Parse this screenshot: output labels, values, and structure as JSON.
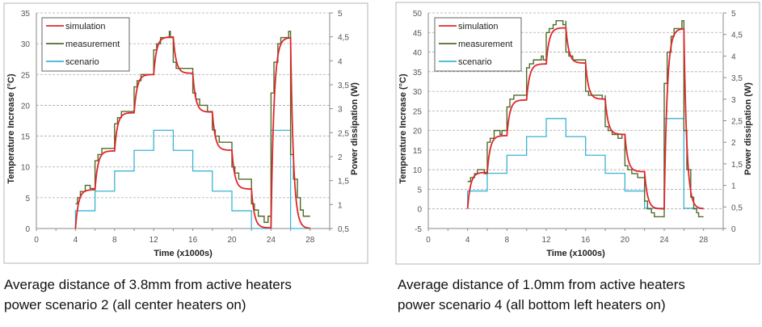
{
  "colors": {
    "simulation": "#e0262b",
    "measurement": "#4f6b2a",
    "scenario": "#3bb3d6",
    "grid": "#9a9a9a",
    "axis": "#8a8a8a"
  },
  "chart_data": [
    {
      "type": "line",
      "title": "",
      "xlabel": "Time (x1000s)",
      "ylabel": "Temperature Increase (°C)",
      "y2label": "Power dissipation (W)",
      "xlim": [
        0,
        30
      ],
      "ylim": [
        0,
        35
      ],
      "y2lim": [
        0.5,
        5
      ],
      "xticks": [
        "0",
        "4",
        "8",
        "12",
        "16",
        "20",
        "24",
        "28"
      ],
      "yticks": [
        "0",
        "5",
        "10",
        "15",
        "20",
        "25",
        "30",
        "35"
      ],
      "y2ticks": [
        "0,5",
        "1",
        "1,5",
        "2",
        "2,5",
        "3",
        "3,5",
        "4",
        "4,5",
        "5"
      ],
      "grid": true,
      "legend_position": "top-left",
      "legend": [
        "simulation",
        "measurement",
        "scenario"
      ],
      "simulation": {
        "start_value": 0,
        "time_constant": 0.3,
        "segments": [
          {
            "t0": 4,
            "t1": 6,
            "level": 6.3
          },
          {
            "t0": 6,
            "t1": 8,
            "level": 12.6
          },
          {
            "t0": 8,
            "t1": 10,
            "level": 18.8
          },
          {
            "t0": 10,
            "t1": 12,
            "level": 25
          },
          {
            "t0": 12,
            "t1": 14,
            "level": 31.1
          },
          {
            "t0": 14,
            "t1": 16,
            "level": 25.2
          },
          {
            "t0": 16,
            "t1": 18,
            "level": 18.9
          },
          {
            "t0": 18,
            "t1": 20,
            "level": 12.7
          },
          {
            "t0": 20,
            "t1": 22,
            "level": 6.4
          },
          {
            "t0": 22,
            "t1": 24,
            "level": 0.1
          },
          {
            "t0": 24,
            "t1": 26,
            "level": 31
          },
          {
            "t0": 26,
            "t1": 28,
            "level": 0
          }
        ]
      },
      "measurement": [
        [
          4,
          4
        ],
        [
          4.2,
          5
        ],
        [
          4.5,
          6
        ],
        [
          5,
          7
        ],
        [
          5.5,
          6.5
        ],
        [
          6,
          7
        ],
        [
          6,
          11
        ],
        [
          6.3,
          12
        ],
        [
          6.7,
          13
        ],
        [
          8,
          13
        ],
        [
          8,
          17
        ],
        [
          8.3,
          18
        ],
        [
          8.7,
          19
        ],
        [
          10,
          19
        ],
        [
          10,
          23
        ],
        [
          10.3,
          24
        ],
        [
          10.7,
          25
        ],
        [
          12,
          25
        ],
        [
          12,
          29
        ],
        [
          12.3,
          30
        ],
        [
          12.7,
          31
        ],
        [
          13.5,
          31
        ],
        [
          13.6,
          32
        ],
        [
          13.7,
          31
        ],
        [
          14,
          31
        ],
        [
          14,
          27
        ],
        [
          14.3,
          26
        ],
        [
          16,
          26
        ],
        [
          16,
          22
        ],
        [
          16.3,
          21
        ],
        [
          16.7,
          20
        ],
        [
          17.3,
          20
        ],
        [
          17.5,
          19
        ],
        [
          18,
          19
        ],
        [
          18,
          16
        ],
        [
          18.3,
          15
        ],
        [
          18.7,
          14
        ],
        [
          20,
          14
        ],
        [
          20,
          10
        ],
        [
          20.3,
          9
        ],
        [
          20.7,
          8
        ],
        [
          22,
          8
        ],
        [
          22,
          4
        ],
        [
          22.3,
          3
        ],
        [
          22.7,
          2
        ],
        [
          23.3,
          1
        ],
        [
          23.7,
          2
        ],
        [
          24,
          1
        ],
        [
          24,
          22
        ],
        [
          24.3,
          27
        ],
        [
          24.7,
          30
        ],
        [
          25,
          31
        ],
        [
          25.7,
          31
        ],
        [
          25.8,
          32
        ],
        [
          26,
          31
        ],
        [
          26,
          12
        ],
        [
          26.3,
          8
        ],
        [
          26.7,
          5
        ],
        [
          27,
          3
        ],
        [
          27.3,
          2
        ],
        [
          28,
          2
        ]
      ],
      "scenario_power_W": [
        [
          4,
          0.5
        ],
        [
          4,
          0.87
        ],
        [
          6,
          0.87
        ],
        [
          6,
          1.28
        ],
        [
          8,
          1.28
        ],
        [
          8,
          1.7
        ],
        [
          10,
          1.7
        ],
        [
          10,
          2.13
        ],
        [
          12,
          2.13
        ],
        [
          12,
          2.55
        ],
        [
          14,
          2.55
        ],
        [
          14,
          2.13
        ],
        [
          16,
          2.13
        ],
        [
          16,
          1.7
        ],
        [
          18,
          1.7
        ],
        [
          18,
          1.28
        ],
        [
          20,
          1.28
        ],
        [
          20,
          0.87
        ],
        [
          22,
          0.87
        ],
        [
          22,
          0.5
        ],
        [
          24,
          0.5
        ],
        [
          24,
          2.55
        ],
        [
          26,
          2.55
        ],
        [
          26,
          0.5
        ],
        [
          28,
          0.5
        ]
      ]
    },
    {
      "type": "line",
      "title": "",
      "xlabel": "Time (x1000s)",
      "ylabel": "Temperature Increase (°C)",
      "y2label": "Power dissipation (W)",
      "xlim": [
        0,
        30
      ],
      "ylim": [
        -5,
        50
      ],
      "y2lim": [
        0,
        5
      ],
      "xticks": [
        "0",
        "4",
        "8",
        "12",
        "16",
        "20",
        "24",
        "28"
      ],
      "yticks": [
        "-5",
        "0",
        "5",
        "10",
        "15",
        "20",
        "25",
        "30",
        "35",
        "40",
        "45",
        "50"
      ],
      "y2ticks": [
        "0",
        "0,5",
        "1",
        "1,5",
        "2",
        "2,5",
        "3",
        "3,5",
        "4",
        "4,5",
        "5"
      ],
      "grid": true,
      "legend_position": "top-left",
      "legend": [
        "simulation",
        "measurement",
        "scenario"
      ],
      "simulation": {
        "start_value": 0,
        "time_constant": 0.3,
        "segments": [
          {
            "t0": 4,
            "t1": 6,
            "level": 9.3
          },
          {
            "t0": 6,
            "t1": 8,
            "level": 18.7
          },
          {
            "t0": 8,
            "t1": 10,
            "level": 27.8
          },
          {
            "t0": 10,
            "t1": 12,
            "level": 37
          },
          {
            "t0": 12,
            "t1": 14,
            "level": 46.2
          },
          {
            "t0": 14,
            "t1": 16,
            "level": 37.2
          },
          {
            "t0": 16,
            "t1": 18,
            "level": 28
          },
          {
            "t0": 18,
            "t1": 20,
            "level": 19
          },
          {
            "t0": 20,
            "t1": 22,
            "level": 9.5
          },
          {
            "t0": 22,
            "t1": 24,
            "level": 0
          },
          {
            "t0": 24,
            "t1": 26,
            "level": 46
          },
          {
            "t0": 26,
            "t1": 28,
            "level": 0
          }
        ]
      },
      "measurement": [
        [
          4,
          7
        ],
        [
          4.3,
          8
        ],
        [
          4.7,
          9
        ],
        [
          5,
          10
        ],
        [
          5.7,
          9
        ],
        [
          6,
          10
        ],
        [
          6,
          17
        ],
        [
          6.3,
          18
        ],
        [
          6.7,
          20
        ],
        [
          7.3,
          19
        ],
        [
          7.5,
          20
        ],
        [
          8,
          20
        ],
        [
          8,
          26
        ],
        [
          8.3,
          28
        ],
        [
          8.7,
          29
        ],
        [
          10,
          29
        ],
        [
          10,
          36
        ],
        [
          10.3,
          37
        ],
        [
          10.7,
          38
        ],
        [
          11.5,
          39
        ],
        [
          11.7,
          38
        ],
        [
          12,
          38
        ],
        [
          12,
          45
        ],
        [
          12.3,
          46
        ],
        [
          12.7,
          47
        ],
        [
          13,
          48
        ],
        [
          13.7,
          47
        ],
        [
          14,
          48
        ],
        [
          14,
          40
        ],
        [
          14.3,
          39
        ],
        [
          14.7,
          38
        ],
        [
          16,
          38
        ],
        [
          16,
          30
        ],
        [
          16.3,
          29
        ],
        [
          17.7,
          28
        ],
        [
          18,
          29
        ],
        [
          18,
          21
        ],
        [
          18.3,
          20
        ],
        [
          18.7,
          19
        ],
        [
          19.3,
          18
        ],
        [
          19.7,
          19
        ],
        [
          20,
          18
        ],
        [
          20,
          11
        ],
        [
          20.3,
          10
        ],
        [
          20.7,
          9
        ],
        [
          21.3,
          8
        ],
        [
          22,
          9
        ],
        [
          22,
          2
        ],
        [
          22.3,
          0
        ],
        [
          22.7,
          -1
        ],
        [
          23,
          -2
        ],
        [
          24,
          -2
        ],
        [
          24,
          32
        ],
        [
          24.3,
          40
        ],
        [
          24.7,
          44
        ],
        [
          25,
          46
        ],
        [
          25.7,
          46
        ],
        [
          25.8,
          48
        ],
        [
          26,
          48
        ],
        [
          26,
          20
        ],
        [
          26.3,
          10
        ],
        [
          26.7,
          3
        ],
        [
          27,
          0
        ],
        [
          27.3,
          -1
        ],
        [
          27.5,
          -2
        ],
        [
          28,
          -2
        ]
      ],
      "scenario_power_W": [
        [
          4,
          0.5
        ],
        [
          4,
          0.87
        ],
        [
          6,
          0.87
        ],
        [
          6,
          1.28
        ],
        [
          8,
          1.28
        ],
        [
          8,
          1.7
        ],
        [
          10,
          1.7
        ],
        [
          10,
          2.13
        ],
        [
          12,
          2.13
        ],
        [
          12,
          2.55
        ],
        [
          14,
          2.55
        ],
        [
          14,
          2.13
        ],
        [
          16,
          2.13
        ],
        [
          16,
          1.7
        ],
        [
          18,
          1.7
        ],
        [
          18,
          1.28
        ],
        [
          20,
          1.28
        ],
        [
          20,
          0.87
        ],
        [
          22,
          0.87
        ],
        [
          22,
          0.47
        ],
        [
          24,
          0.47
        ],
        [
          24,
          2.55
        ],
        [
          26,
          2.55
        ],
        [
          26,
          0.47
        ],
        [
          28,
          0.47
        ]
      ]
    }
  ],
  "captions": [
    {
      "line1": "Average distance of 3.8mm from active heaters",
      "line2": "power scenario 2 (all center heaters on)"
    },
    {
      "line1": "Average distance of 1.0mm from active heaters",
      "line2": "power scenario 4 (all bottom left heaters on)"
    }
  ]
}
